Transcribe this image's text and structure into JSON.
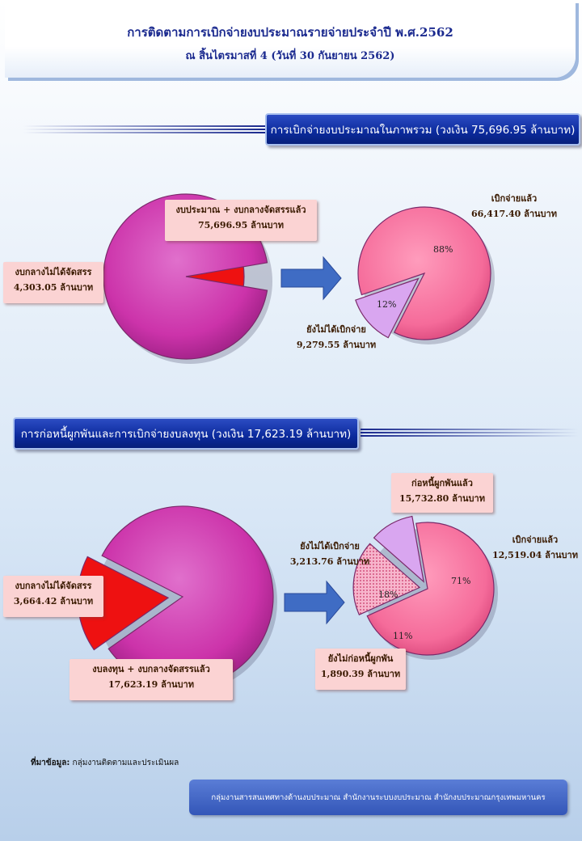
{
  "header": {
    "title": "การติดตามการเบิกจ่ายงบประมาณรายจ่ายประจำปี พ.ศ.2562",
    "subtitle": "ณ สิ้นไตรมาสที่ 4  (วันที่ 30 กันยายน 2562)"
  },
  "section1": {
    "heading": "การเบิกจ่ายงบประมาณในภาพรวม  (วงเงิน 75,696.95  ล้านบาท)",
    "left_pie": {
      "main_label": "งบประมาณ + งบกลางจัดสรรแล้ว",
      "main_value": "75,696.95  ล้านบาท",
      "minor_label": "งบกลางไม่ได้จัดสรร",
      "minor_value": "4,303.05  ล้านบาท"
    },
    "right_pie": {
      "disbursed_label": "เบิกจ่ายแล้ว",
      "disbursed_value": "66,417.40  ล้านบาท",
      "disbursed_pct": "88%",
      "pending_label": "ยังไม่ได้เบิกจ่าย",
      "pending_value": "9,279.55  ล้านบาท",
      "pending_pct": "12%"
    }
  },
  "section2": {
    "heading": "การก่อหนี้ผูกพันและการเบิกจ่ายงบลงทุน  (วงเงิน 17,623.19  ล้านบาท)",
    "left_pie": {
      "main_label": "งบลงทุน + งบกลางจัดสรรแล้ว",
      "main_value": "17,623.19  ล้านบาท",
      "minor_label": "งบกลางไม่ได้จัดสรร",
      "minor_value": "3,664.42  ล้านบาท"
    },
    "right_pie": {
      "committed_label": "ก่อหนี้ผูกพันแล้ว",
      "committed_value": "15,732.80  ล้านบาท",
      "not_disbursed_label": "ยังไม่ได้เบิกจ่าย",
      "not_disbursed_value": "3,213.76  ล้านบาท",
      "not_disbursed_pct": "18%",
      "disbursed_label": "เบิกจ่ายแล้ว",
      "disbursed_value": "12,519.04  ล้านบาท",
      "disbursed_pct": "71%",
      "uncommitted_label": "ยังไม่ก่อหนี้ผูกพัน",
      "uncommitted_value": "1,890.39  ล้านบาท",
      "uncommitted_pct": "11%"
    }
  },
  "footer": {
    "source_label": "ที่มาข้อมูล:",
    "source_text": " กลุ่มงานติดตามและประเมินผล",
    "org": "กลุ่มงานสารสนเทศทางด้านงบประมาณ สำนักงานระบบงบประมาณ สำนักงบประมาณกรุงเทพมหานคร"
  },
  "colors": {
    "magenta": "#cc33aa",
    "red": "#ee1111",
    "pink": "#f56b9a",
    "lavender": "#d9a6f0",
    "navy": "#0b2a9c",
    "arrow": "#3f6cc4"
  },
  "chart_data": [
    {
      "type": "pie",
      "labels": [
        "งบประมาณ + งบกลางจัดสรรแล้ว",
        "งบกลางไม่ได้จัดสรร"
      ],
      "values": [
        75696.95,
        4303.05
      ]
    },
    {
      "type": "pie",
      "labels": [
        "เบิกจ่ายแล้ว",
        "ยังไม่ได้เบิกจ่าย"
      ],
      "values": [
        66417.4,
        9279.55
      ],
      "percent_labels": [
        "88%",
        "12%"
      ]
    },
    {
      "type": "pie",
      "labels": [
        "งบลงทุน + งบกลางจัดสรรแล้ว",
        "งบกลางไม่ได้จัดสรร"
      ],
      "values": [
        17623.19,
        3664.42
      ]
    },
    {
      "type": "pie",
      "labels": [
        "เบิกจ่ายแล้ว",
        "ยังไม่ได้เบิกจ่าย",
        "ยังไม่ก่อหนี้ผูกพัน"
      ],
      "values": [
        12519.04,
        3213.76,
        1890.39
      ],
      "percent_labels": [
        "71%",
        "18%",
        "11%"
      ]
    }
  ]
}
